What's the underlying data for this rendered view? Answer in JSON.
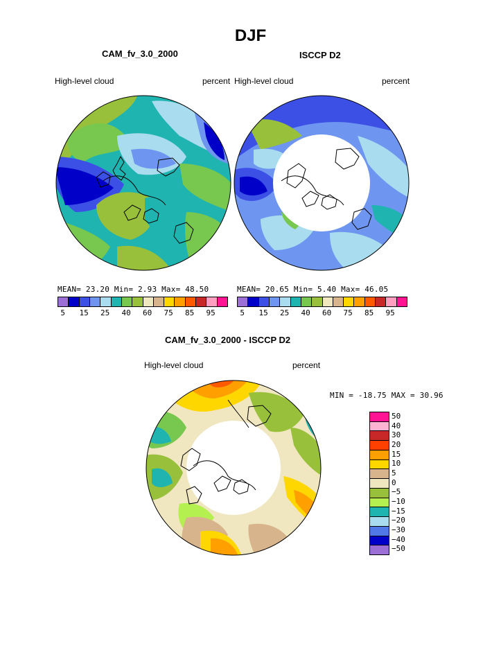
{
  "title": "DJF",
  "panels": {
    "left": {
      "title": "CAM_fv_3.0_2000",
      "variable": "High-level cloud",
      "units": "percent",
      "stats": "MEAN=  23.20  Min=   2.93  Max=  48.50"
    },
    "right": {
      "title": "ISCCP D2",
      "variable": "High-level cloud",
      "units": "percent",
      "stats": "MEAN=  20.65  Min=   5.40  Max=  46.05"
    },
    "diff": {
      "title": "CAM_fv_3.0_2000 - ISCCP D2",
      "variable": "High-level cloud",
      "units": "percent",
      "stats": "MIN = -18.75 MAX =  30.96"
    }
  },
  "abs_colorbar": {
    "colors": [
      "#9b6fd6",
      "#0000c8",
      "#3c50e6",
      "#6e96f0",
      "#a8dcee",
      "#20b4b0",
      "#78c850",
      "#98c03a",
      "#f0e6c0",
      "#d8b48c",
      "#ffd700",
      "#ffa000",
      "#ff5a00",
      "#c82828",
      "#ff9ec0",
      "#ff1493"
    ],
    "labels": [
      "5",
      "15",
      "25",
      "40",
      "60",
      "75",
      "85",
      "95"
    ]
  },
  "diff_colorbar": {
    "colors": [
      "#ff1493",
      "#ffb4d2",
      "#c82828",
      "#ff4000",
      "#ffa000",
      "#ffd700",
      "#d8b48c",
      "#f0e6c0",
      "#98c03a",
      "#b4f050",
      "#20b4b0",
      "#a8dcee",
      "#5078e6",
      "#0000c8",
      "#9b6fd6"
    ],
    "labels": [
      "50",
      "40",
      "30",
      "20",
      "15",
      "10",
      "5",
      "0",
      "−5",
      "−10",
      "−15",
      "−20",
      "−30",
      "−40",
      "−50"
    ]
  }
}
